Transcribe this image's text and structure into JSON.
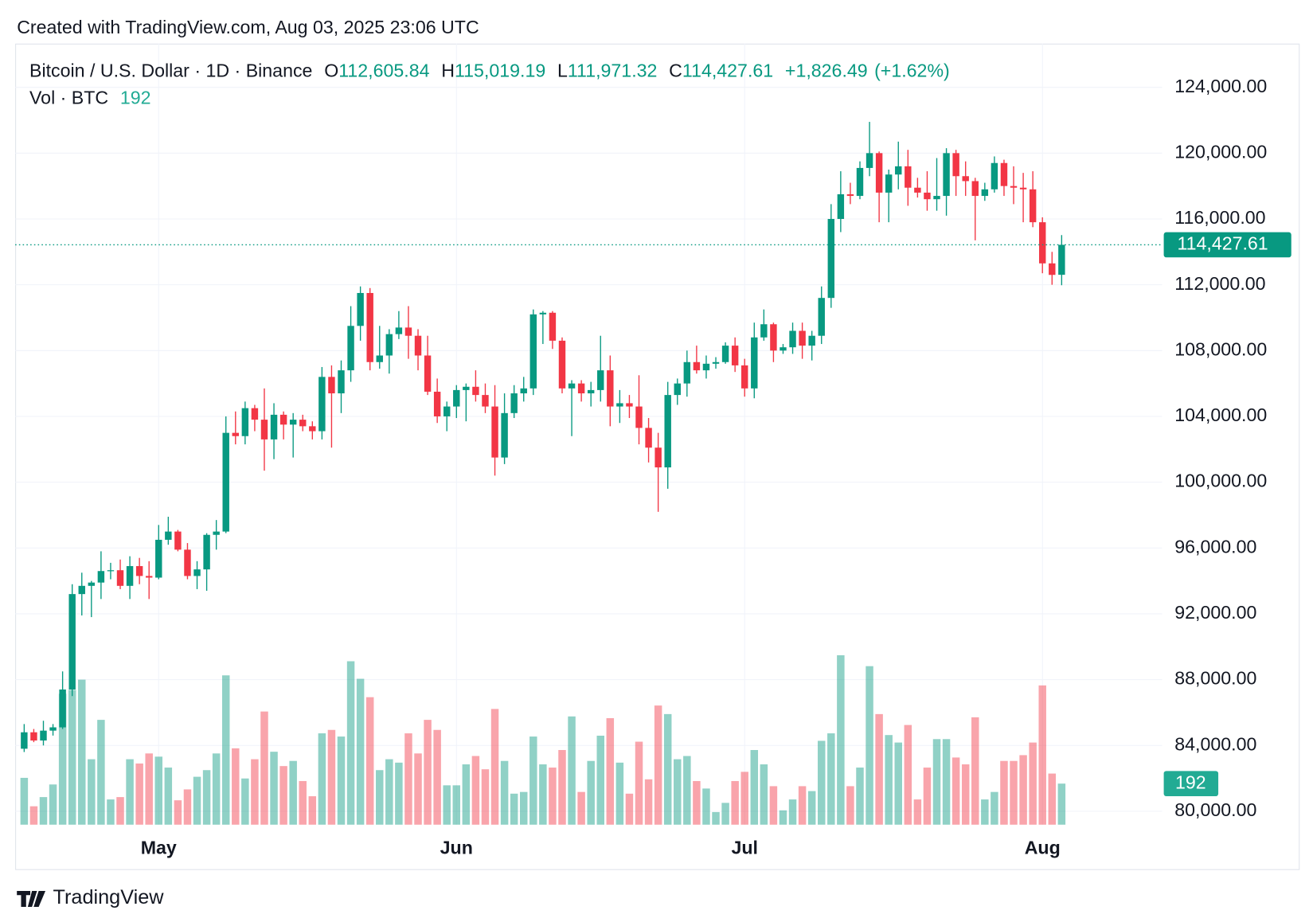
{
  "header": {
    "created": "Created with TradingView.com, Aug 03, 2025 23:06 UTC"
  },
  "legend": {
    "symbol": "Bitcoin / U.S. Dollar · 1D · Binance",
    "o_label": "O",
    "open": "112,605.84",
    "h_label": "H",
    "high": "115,019.19",
    "l_label": "L",
    "low": "111,971.32",
    "c_label": "C",
    "close": "114,427.61",
    "change": "+1,826.49",
    "change_pct": "(+1.62%)",
    "vol_label": "Vol · BTC",
    "vol": "192"
  },
  "footer": {
    "brand": "TradingView"
  },
  "chart_data": {
    "type": "candlestick",
    "categories": [
      null,
      null,
      null,
      null,
      null,
      null,
      null,
      null,
      null,
      null,
      null,
      null,
      null,
      null,
      "May",
      null,
      null,
      null,
      null,
      null,
      null,
      null,
      null,
      null,
      null,
      null,
      null,
      null,
      null,
      null,
      null,
      null,
      null,
      null,
      null,
      null,
      null,
      null,
      null,
      null,
      null,
      null,
      null,
      null,
      null,
      "Jun",
      null,
      null,
      null,
      null,
      null,
      null,
      null,
      null,
      null,
      null,
      null,
      null,
      null,
      null,
      null,
      null,
      null,
      null,
      null,
      null,
      null,
      null,
      null,
      null,
      null,
      null,
      null,
      null,
      null,
      "Jul",
      null,
      null,
      null,
      null,
      null,
      null,
      null,
      null,
      null,
      null,
      null,
      null,
      null,
      null,
      null,
      null,
      null,
      null,
      null,
      null,
      null,
      null,
      null,
      null,
      null,
      null,
      null,
      null,
      null,
      null,
      "Aug",
      null,
      null
    ],
    "open": [
      83800,
      84800,
      84300,
      84900,
      85100,
      87400,
      93200,
      93700,
      93900,
      94600,
      94650,
      93700,
      94900,
      94300,
      94200,
      96500,
      97000,
      95900,
      94300,
      94700,
      96800,
      97000,
      103000,
      102800,
      104500,
      103800,
      102600,
      104100,
      103500,
      103800,
      103400,
      103100,
      106400,
      105400,
      106800,
      109500,
      111500,
      107300,
      107700,
      109000,
      109400,
      108900,
      107700,
      105500,
      104000,
      104600,
      105600,
      105800,
      105300,
      104600,
      101500,
      104200,
      105400,
      105700,
      110200,
      110300,
      108600,
      105700,
      106000,
      105400,
      105600,
      106800,
      104600,
      104800,
      104600,
      103300,
      102100,
      100900,
      105300,
      106000,
      107300,
      106800,
      107200,
      107300,
      108300,
      107100,
      105700,
      108800,
      109600,
      108000,
      108200,
      109200,
      108300,
      108900,
      111200,
      116000,
      117500,
      117400,
      119100,
      120000,
      117600,
      118700,
      119200,
      117900,
      117600,
      117200,
      117400,
      120000,
      118600,
      118300,
      117400,
      117800,
      119400,
      118000,
      117900,
      117800,
      115800,
      113300,
      112605.84
    ],
    "high": [
      85300,
      85000,
      85500,
      85300,
      88500,
      93800,
      94500,
      94000,
      95800,
      95100,
      95300,
      95500,
      95400,
      95200,
      97400,
      97900,
      97100,
      96300,
      95200,
      96900,
      97700,
      104000,
      104300,
      104900,
      104700,
      105700,
      104800,
      104300,
      104200,
      104100,
      103700,
      107000,
      107100,
      107400,
      110700,
      111900,
      111800,
      109500,
      109300,
      110400,
      110700,
      109300,
      108900,
      106300,
      104900,
      105900,
      106000,
      106800,
      106000,
      105900,
      105400,
      105900,
      106400,
      110500,
      110400,
      110400,
      108800,
      106200,
      106200,
      106100,
      108900,
      107700,
      105600,
      105300,
      106500,
      103900,
      103000,
      106100,
      106300,
      108000,
      108300,
      107700,
      107600,
      108500,
      108800,
      107500,
      109700,
      110500,
      109700,
      108400,
      109700,
      109700,
      109200,
      111900,
      116900,
      118900,
      118200,
      119500,
      121900,
      120100,
      119000,
      120700,
      120200,
      118500,
      118900,
      119700,
      120300,
      120200,
      119500,
      118500,
      118200,
      119800,
      119600,
      119200,
      118800,
      118900,
      116100,
      114000,
      115019.19
    ],
    "low": [
      83600,
      84200,
      84000,
      84600,
      85000,
      87000,
      91900,
      91800,
      92900,
      94100,
      93500,
      92900,
      93800,
      92900,
      94100,
      96200,
      95800,
      94100,
      93500,
      93400,
      95900,
      96900,
      102300,
      102300,
      103100,
      100700,
      101400,
      102600,
      101500,
      103100,
      102600,
      102600,
      102100,
      104200,
      106100,
      108600,
      106800,
      106900,
      106600,
      108700,
      107500,
      106800,
      105300,
      103600,
      103100,
      103900,
      103700,
      104900,
      104200,
      100400,
      101100,
      103900,
      104900,
      105300,
      108400,
      108100,
      105400,
      102800,
      104900,
      104600,
      104900,
      103400,
      103600,
      103900,
      102300,
      101200,
      98200,
      99600,
      104700,
      105200,
      106600,
      106300,
      106900,
      107200,
      106700,
      105200,
      105100,
      108600,
      107300,
      107800,
      107800,
      107500,
      107400,
      108400,
      110600,
      115200,
      116900,
      117200,
      118600,
      115800,
      115800,
      117800,
      116800,
      117300,
      116500,
      116500,
      116200,
      117400,
      117400,
      114700,
      117100,
      117600,
      117400,
      116900,
      115800,
      115500,
      112700,
      112000,
      111971.32
    ],
    "close": [
      84800,
      84300,
      84900,
      85100,
      87400,
      93200,
      93700,
      93900,
      94600,
      94650,
      93700,
      94900,
      94300,
      94200,
      96500,
      97000,
      95900,
      94300,
      94700,
      96800,
      97000,
      103000,
      102800,
      104500,
      103800,
      102600,
      104100,
      103500,
      103800,
      103400,
      103100,
      106400,
      105400,
      106800,
      109500,
      111500,
      107300,
      107700,
      109000,
      109400,
      108900,
      107700,
      105500,
      104000,
      104600,
      105600,
      105800,
      105300,
      104600,
      101500,
      104200,
      105400,
      105700,
      110200,
      110300,
      108600,
      105700,
      106000,
      105400,
      105600,
      106800,
      104600,
      104800,
      104600,
      103300,
      102100,
      100900,
      105300,
      106000,
      107300,
      106800,
      107200,
      107300,
      108300,
      107100,
      105700,
      108800,
      109600,
      108000,
      108200,
      109200,
      108300,
      108900,
      111200,
      116000,
      117500,
      117400,
      119100,
      120000,
      117600,
      118700,
      119200,
      117900,
      117600,
      117200,
      117400,
      120000,
      118600,
      118300,
      117400,
      117800,
      119400,
      118000,
      117900,
      117800,
      115800,
      113300,
      112600,
      114427.61
    ],
    "volume": [
      219,
      86,
      129,
      188,
      612,
      630,
      678,
      306,
      490,
      118,
      129,
      306,
      286,
      333,
      318,
      267,
      114,
      165,
      224,
      255,
      333,
      698,
      357,
      216,
      306,
      529,
      341,
      274,
      298,
      204,
      133,
      427,
      443,
      412,
      764,
      682,
      596,
      255,
      306,
      290,
      427,
      333,
      490,
      443,
      184,
      184,
      282,
      321,
      259,
      541,
      298,
      145,
      153,
      412,
      282,
      267,
      349,
      506,
      153,
      298,
      416,
      498,
      290,
      145,
      388,
      212,
      557,
      517,
      306,
      321,
      204,
      169,
      59,
      102,
      204,
      247,
      349,
      282,
      180,
      67,
      118,
      180,
      157,
      392,
      427,
      792,
      180,
      267,
      741,
      517,
      419,
      384,
      466,
      118,
      267,
      400,
      400,
      314,
      282,
      502,
      118,
      153,
      298,
      298,
      325,
      384,
      651,
      239,
      192
    ],
    "ylim": [
      79184,
      126656
    ],
    "yticks": [
      {
        "value": 80000,
        "label": "80,000.00"
      },
      {
        "value": 84000,
        "label": "84,000.00"
      },
      {
        "value": 88000,
        "label": "88,000.00"
      },
      {
        "value": 92000,
        "label": "92,000.00"
      },
      {
        "value": 96000,
        "label": "96,000.00"
      },
      {
        "value": 100000,
        "label": "100,000.00"
      },
      {
        "value": 104000,
        "label": "104,000.00"
      },
      {
        "value": 108000,
        "label": "108,000.00"
      },
      {
        "value": 112000,
        "label": "112,000.00"
      },
      {
        "value": 116000,
        "label": "116,000.00"
      },
      {
        "value": 120000,
        "label": "120,000.00"
      },
      {
        "value": 124000,
        "label": "124,000.00"
      }
    ],
    "last_price_label": "114,427.61",
    "volume_label": "192",
    "up_color": "#089981",
    "down_color": "#f23645",
    "grid": true
  }
}
